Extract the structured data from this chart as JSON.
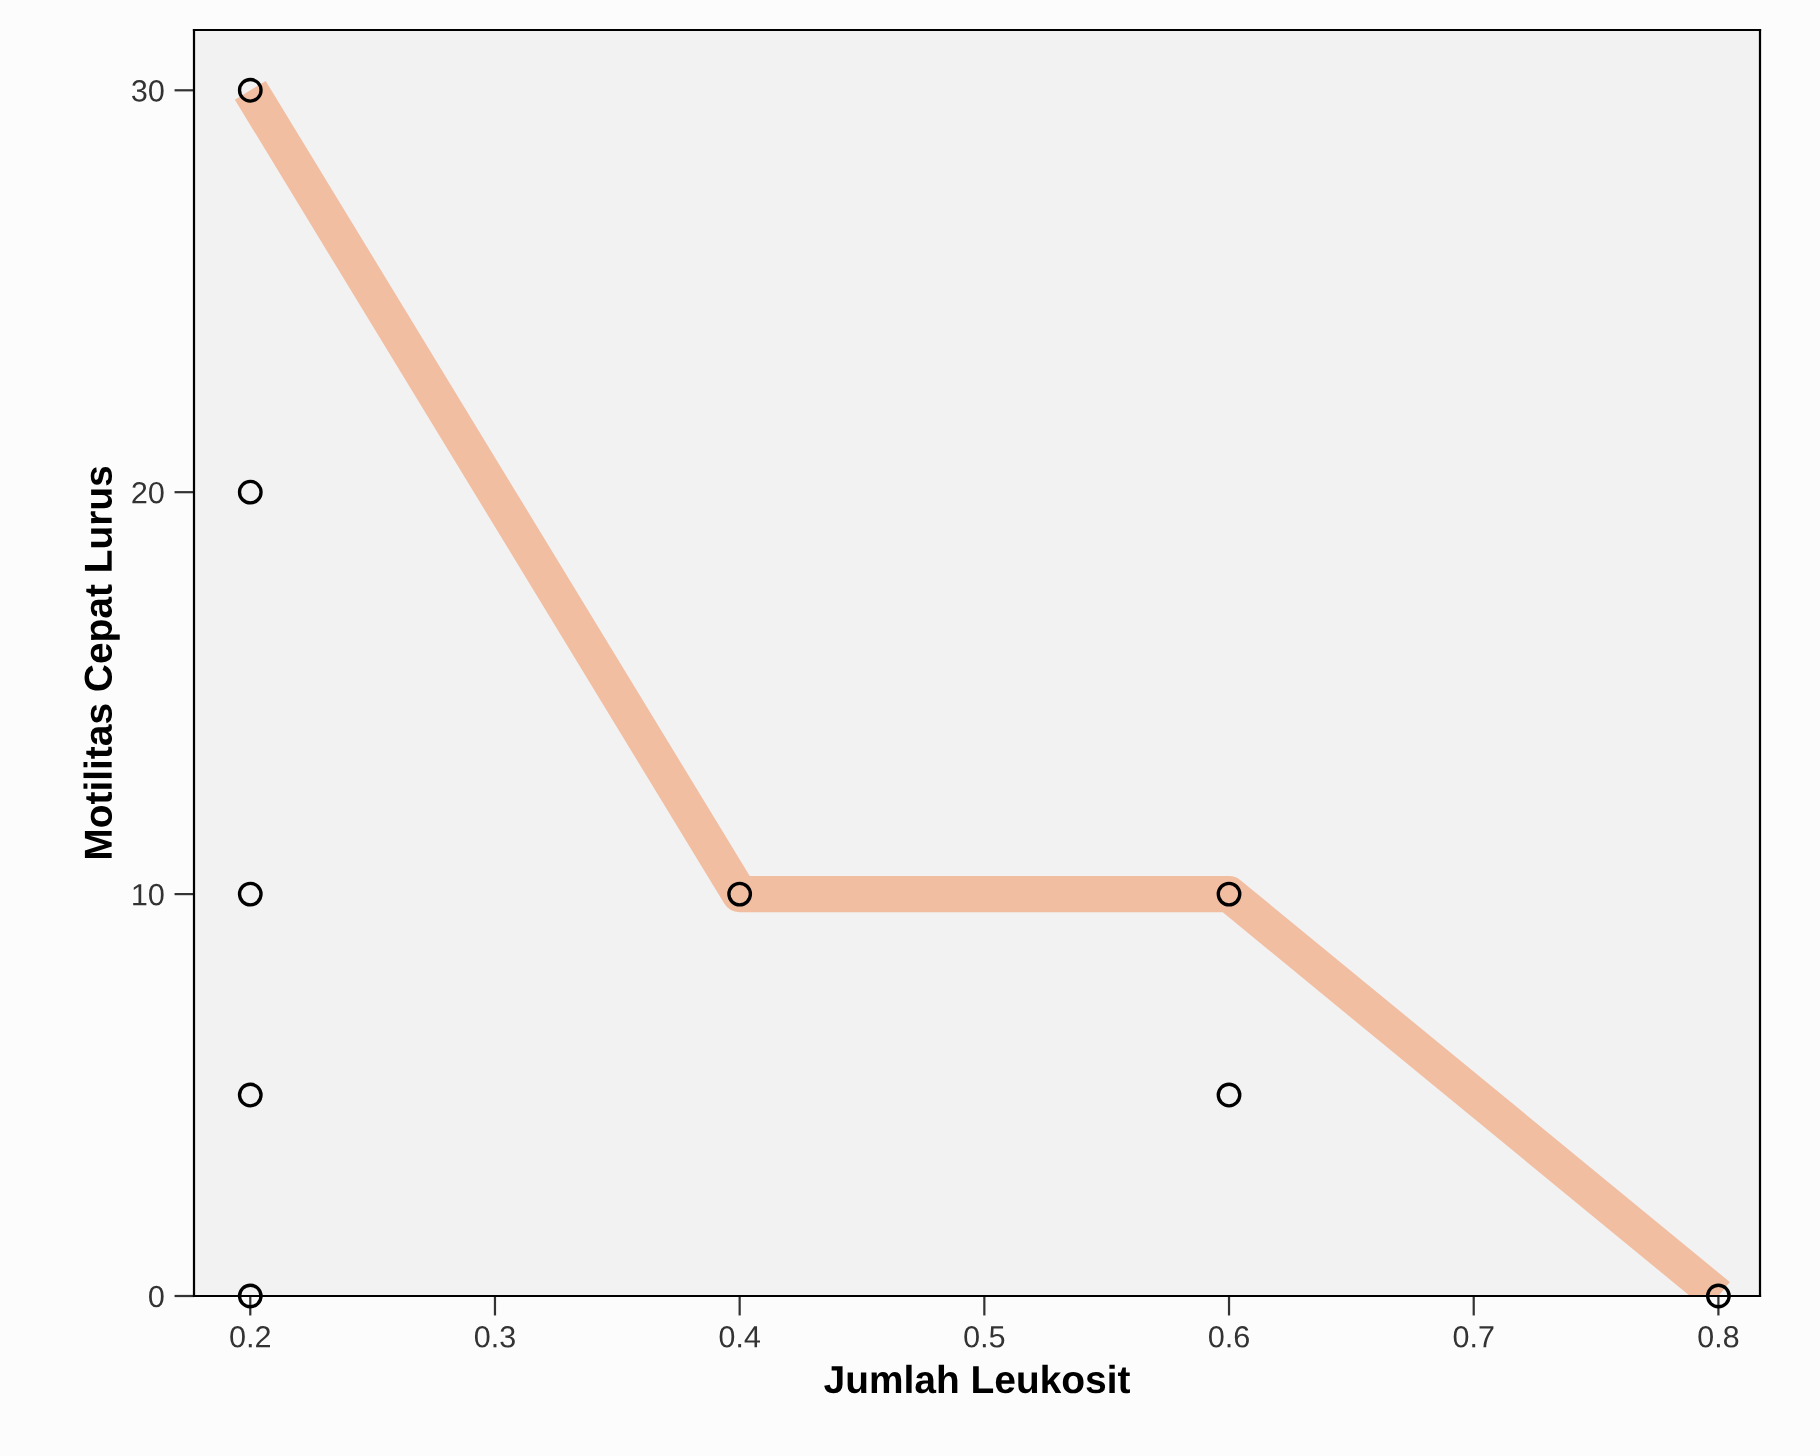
{
  "chart_data": {
    "type": "scatter",
    "xlabel": "Jumlah Leukosit",
    "ylabel": "Motilitas Cepat Lurus",
    "series": [
      {
        "type": "line",
        "color": "#f2bea2",
        "x": [
          0.2,
          0.4,
          0.6,
          0.8
        ],
        "values": [
          30,
          10,
          10,
          0
        ],
        "marker": "none"
      },
      {
        "color": "#000000",
        "x": [
          0.2,
          0.2,
          0.2,
          0.2,
          0.2,
          0.4,
          0.6,
          0.6,
          0.8
        ],
        "values": [
          30,
          20,
          10,
          5,
          0,
          10,
          10,
          5,
          0
        ],
        "marker": "circle"
      }
    ],
    "xlim": [
      0.177,
      0.817
    ],
    "ylim": [
      0,
      31.5
    ],
    "xticks": [
      {
        "value": 0.2,
        "label": "0.2"
      },
      {
        "value": 0.3,
        "label": "0.3"
      },
      {
        "value": 0.4,
        "label": "0.4"
      },
      {
        "value": 0.5,
        "label": "0.5"
      },
      {
        "value": 0.6,
        "label": "0.6"
      },
      {
        "value": 0.7,
        "label": "0.7"
      },
      {
        "value": 0.8,
        "label": "0.8"
      }
    ],
    "yticks": [
      0,
      10,
      20,
      30
    ],
    "grid": false,
    "legend": false
  }
}
